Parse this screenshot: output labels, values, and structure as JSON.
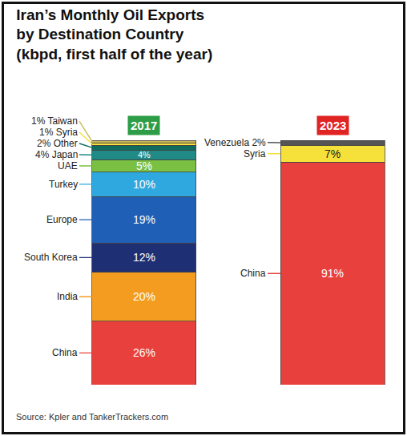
{
  "chart_data": {
    "type": "bar",
    "stacked": true,
    "data_labels": true,
    "tick_labels": false,
    "grid": false,
    "title": [
      "Iran’s Monthly Oil Exports",
      "by Destination Country",
      "(kbpd, first half of the year)"
    ],
    "categories": [
      "2017",
      "2023"
    ],
    "ylim": [
      0,
      100
    ],
    "series": [
      {
        "name": "China",
        "color": "#e8403c",
        "values": [
          26,
          91
        ],
        "value_labels": [
          "26%",
          "91%"
        ],
        "side_labels": [
          "China",
          "China"
        ]
      },
      {
        "name": "India",
        "color": "#f39c1f",
        "values": [
          20,
          null
        ],
        "value_labels": [
          "20%",
          null
        ],
        "side_labels": [
          "India",
          null
        ]
      },
      {
        "name": "South Korea",
        "color": "#1f2f73",
        "values": [
          12,
          null
        ],
        "value_labels": [
          "12%",
          null
        ],
        "side_labels": [
          "South Korea",
          null
        ]
      },
      {
        "name": "Europe",
        "color": "#1f5fb5",
        "values": [
          19,
          null
        ],
        "value_labels": [
          "19%",
          null
        ],
        "side_labels": [
          "Europe",
          null
        ]
      },
      {
        "name": "Turkey",
        "color": "#2fa8e0",
        "values": [
          10,
          null
        ],
        "value_labels": [
          "10%",
          null
        ],
        "side_labels": [
          "Turkey",
          null
        ]
      },
      {
        "name": "UAE",
        "color": "#7ac043",
        "values": [
          5,
          null
        ],
        "value_labels": [
          "5%",
          null
        ],
        "side_labels": [
          "UAE",
          null
        ]
      },
      {
        "name": "Japan",
        "color": "#1f8a86",
        "values": [
          4,
          null
        ],
        "value_labels": [
          "4%",
          null
        ],
        "side_labels": [
          "4% Japan",
          null
        ]
      },
      {
        "name": "Other",
        "color": "#0f6b5e",
        "values": [
          2,
          null
        ],
        "value_labels": [
          null,
          null
        ],
        "side_labels": [
          "2% Other",
          null
        ]
      },
      {
        "name": "Syria",
        "color": "#f6e03a",
        "values": [
          1,
          7
        ],
        "value_labels": [
          null,
          "7%"
        ],
        "side_labels": [
          "1% Syria",
          "Syria"
        ]
      },
      {
        "name": "Taiwan",
        "color": "#c9b95a",
        "values": [
          1,
          null
        ],
        "value_labels": [
          null,
          null
        ],
        "side_labels": [
          "1% Taiwan",
          null
        ]
      },
      {
        "name": "Venezuela",
        "color": "#555555",
        "values": [
          null,
          2
        ],
        "value_labels": [
          null,
          null
        ],
        "side_labels": [
          null,
          "Venezuela 2%"
        ]
      }
    ],
    "annotations": [
      "Source: Kpler and TankerTrackers.com"
    ]
  }
}
